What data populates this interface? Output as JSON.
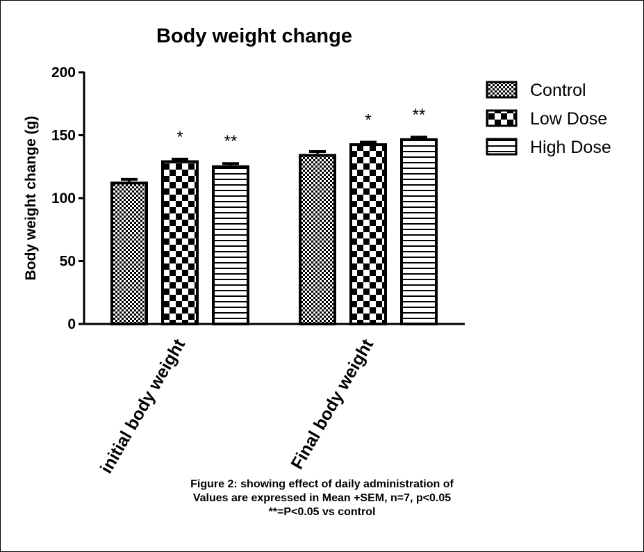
{
  "chart_data": {
    "type": "bar",
    "title": "Body weight change",
    "ylabel": "Body weight change  (g)",
    "xlabel": "",
    "ylim": [
      0,
      200
    ],
    "yticks": [
      0,
      50,
      100,
      150,
      200
    ],
    "categories": [
      "initial body weight",
      "Final body weight"
    ],
    "series": [
      {
        "name": "Control",
        "pattern": "fine-checker",
        "values": [
          112,
          134
        ],
        "sem": [
          3,
          3
        ],
        "annotations": [
          "",
          ""
        ]
      },
      {
        "name": "Low Dose",
        "pattern": "coarse-checker",
        "values": [
          129,
          142.5
        ],
        "sem": [
          2,
          2
        ],
        "annotations": [
          "*",
          "*"
        ]
      },
      {
        "name": "High Dose",
        "pattern": "horizontal-stripes",
        "values": [
          125,
          146.5
        ],
        "sem": [
          2.5,
          2
        ],
        "annotations": [
          "**",
          "**"
        ]
      }
    ],
    "grid": false,
    "legend": "right"
  },
  "caption": [
    "Figure 2: showing effect of daily administration of",
    "Values are expressed in Mean +SEM,  n=7, p<0.05",
    "**=P<0.05 vs control"
  ]
}
